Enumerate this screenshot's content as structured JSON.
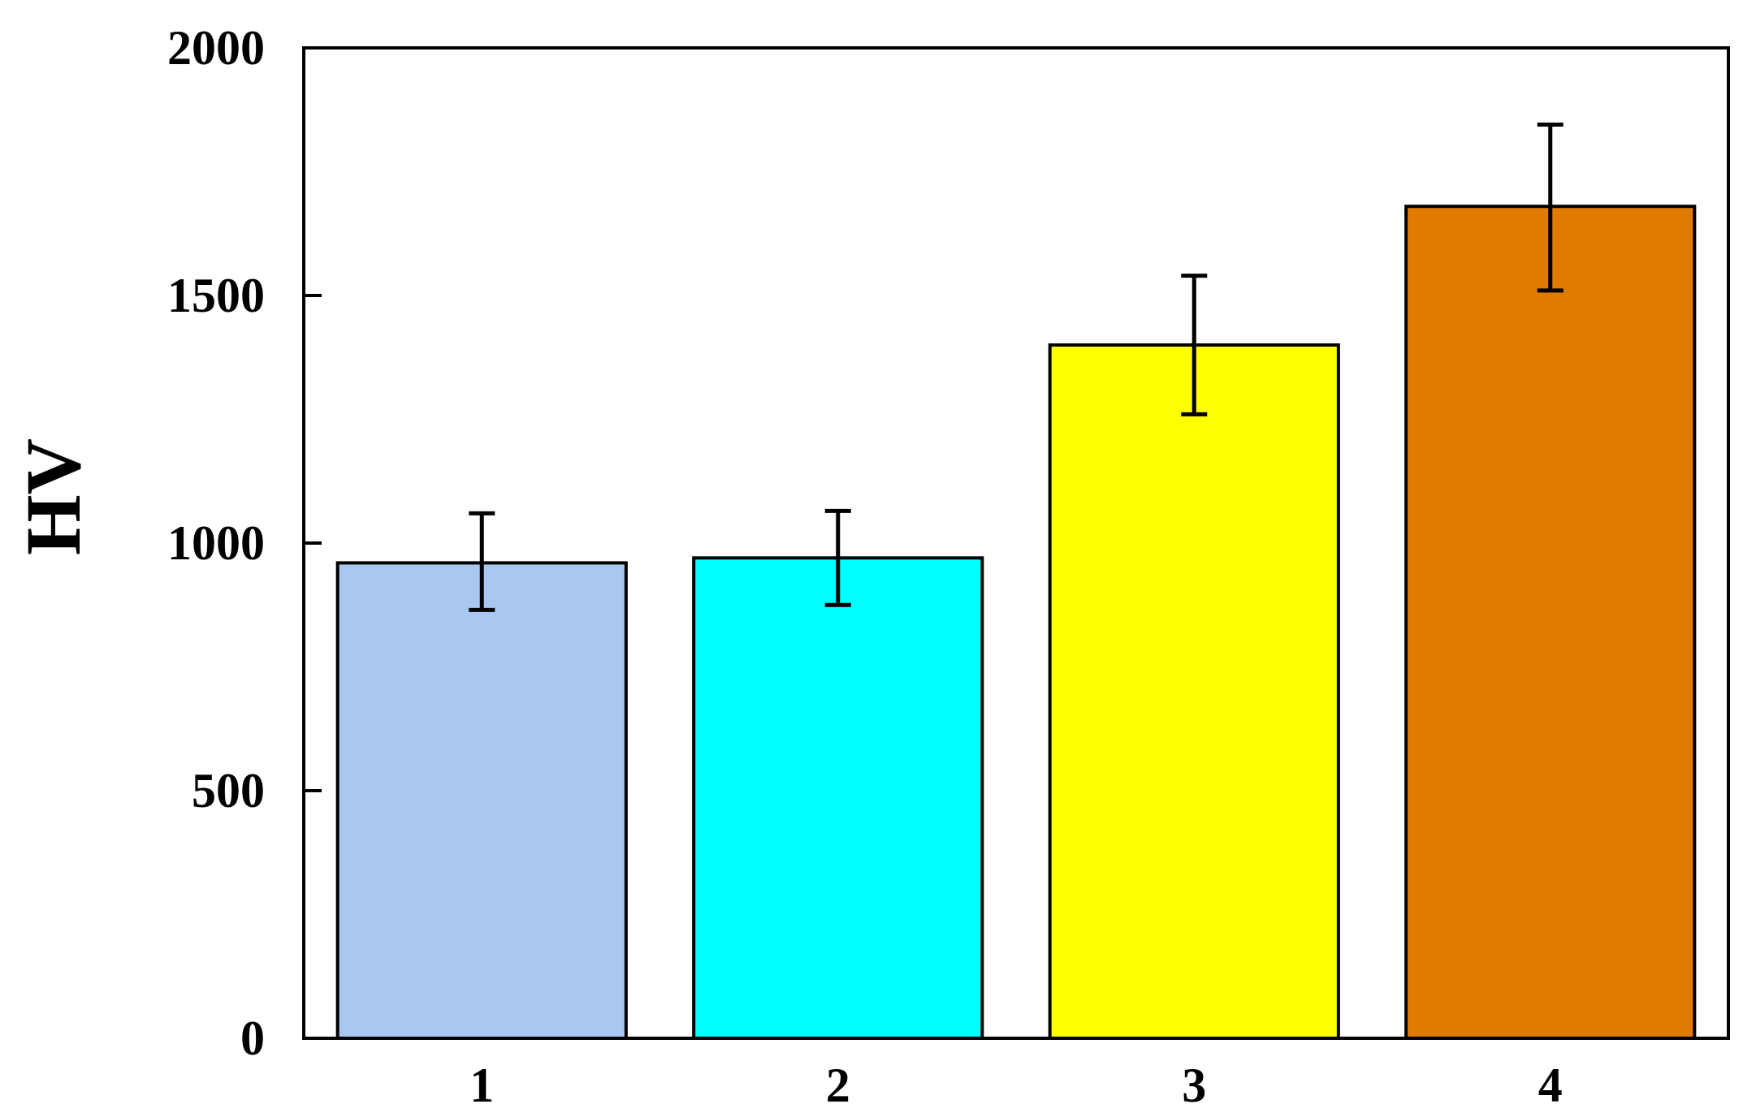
{
  "chart_data": {
    "type": "bar",
    "title": "",
    "xlabel": "",
    "ylabel": "HV",
    "categories": [
      "1",
      "2",
      "3",
      "4"
    ],
    "values": [
      960,
      970,
      1400,
      1680
    ],
    "error_low": [
      865,
      875,
      1260,
      1510
    ],
    "error_high": [
      1060,
      1065,
      1540,
      1845
    ],
    "colors": [
      "#a8c8f0",
      "#00ffff",
      "#ffff00",
      "#e07b00"
    ],
    "ylim": [
      0,
      2000
    ],
    "yticks": [
      0,
      500,
      1000,
      1500,
      2000
    ],
    "grid": false,
    "legend": "none"
  }
}
